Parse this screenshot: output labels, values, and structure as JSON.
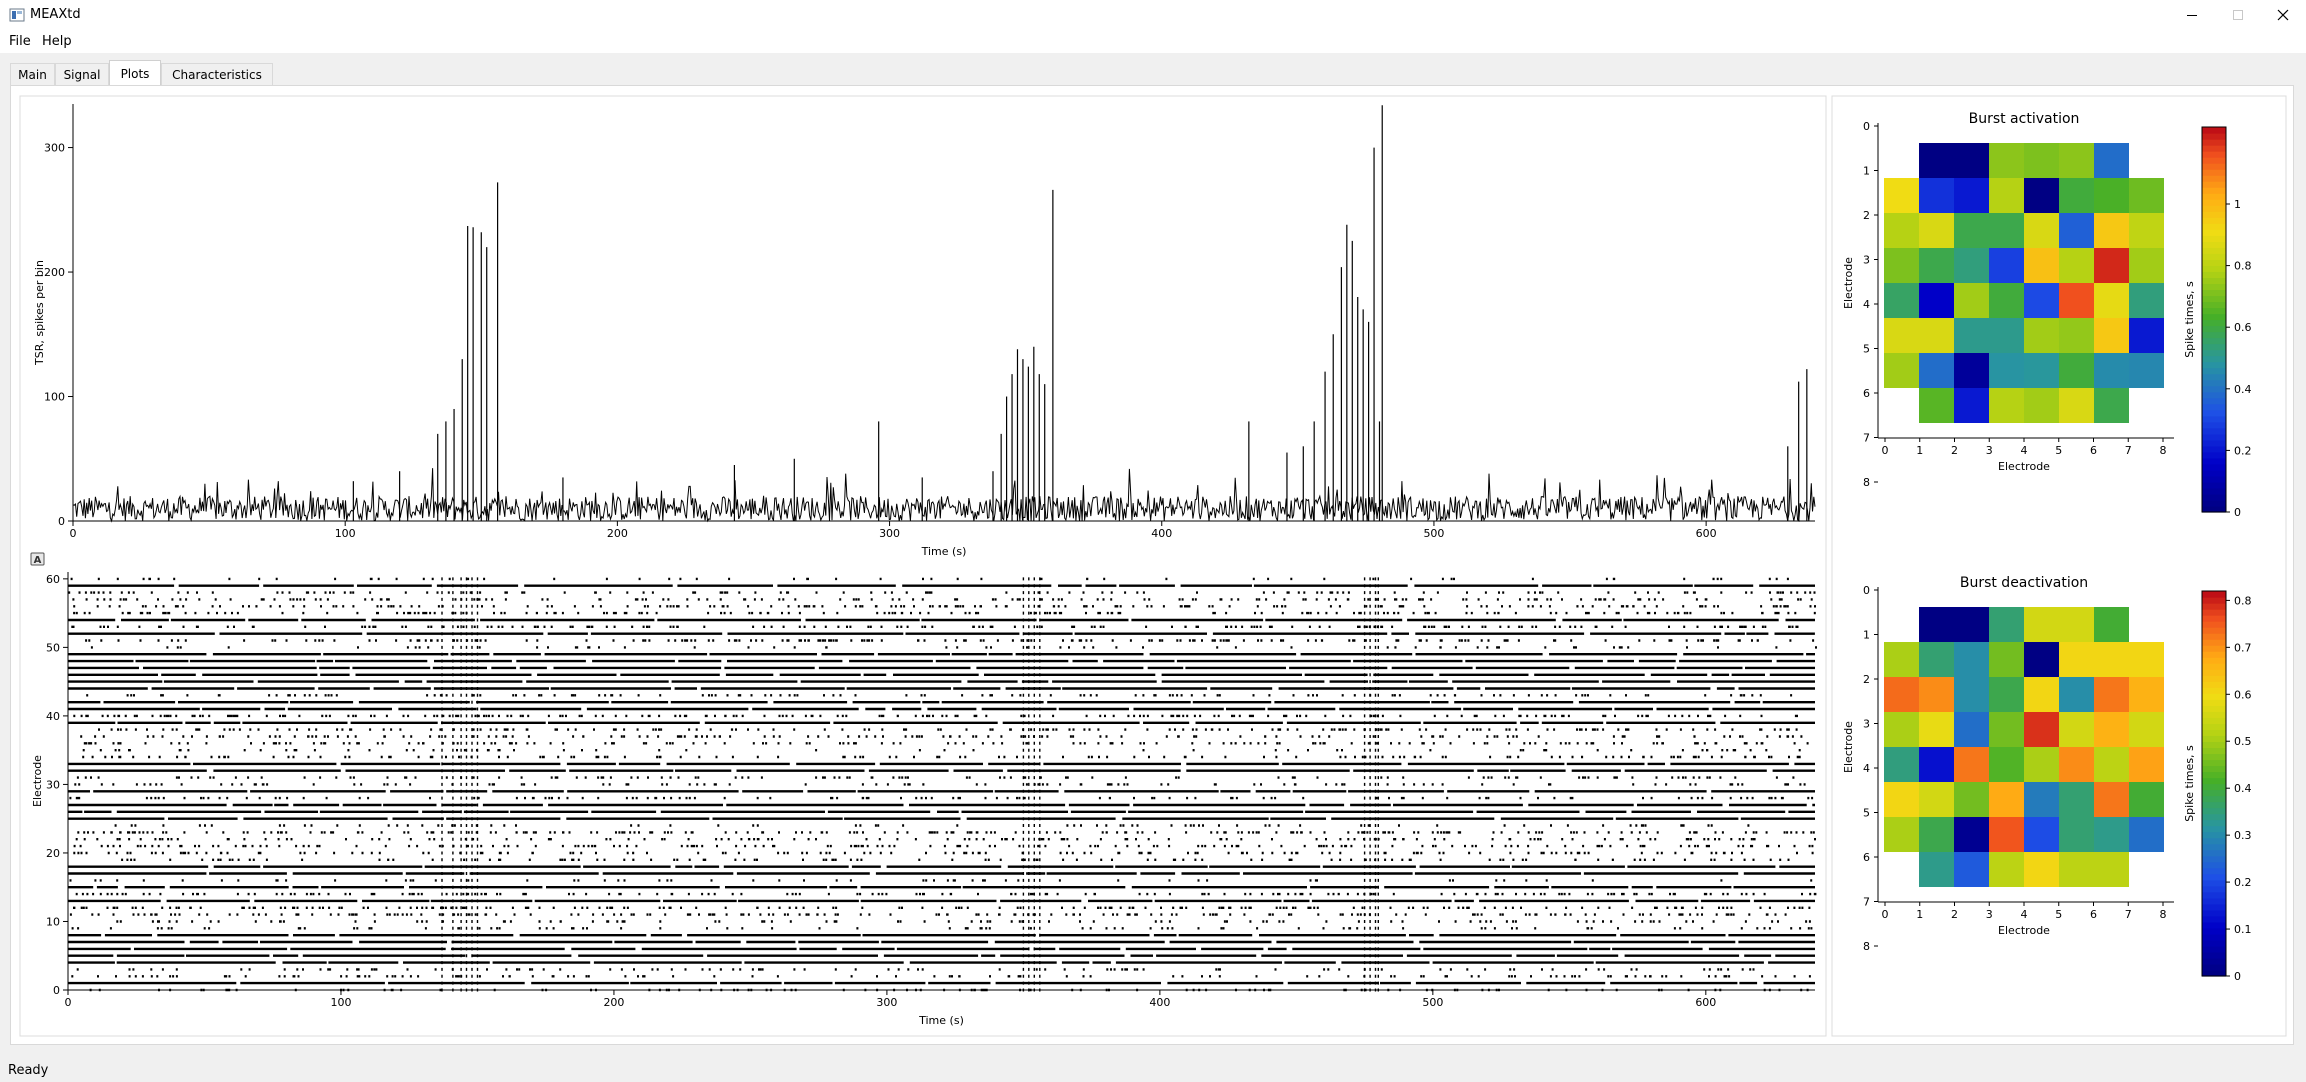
{
  "window": {
    "title": "MEAXtd"
  },
  "menu": {
    "items": [
      "File",
      "Help"
    ]
  },
  "tabs": [
    {
      "label": "Main",
      "active": false
    },
    {
      "label": "Signal",
      "active": false
    },
    {
      "label": "Plots",
      "active": true
    },
    {
      "label": "Characteristics",
      "active": false
    }
  ],
  "status": {
    "text": "Ready"
  },
  "chart_data": [
    {
      "type": "line",
      "xlabel": "Time (s)",
      "ylabel": "TSR, spikes per bin",
      "xlim": [
        0,
        640
      ],
      "ylim": [
        0,
        335
      ],
      "xticks": [
        0,
        100,
        200,
        300,
        400,
        500,
        600
      ],
      "yticks": [
        0,
        100,
        200,
        300
      ],
      "baseline_range": [
        0,
        20
      ],
      "peaks": [
        {
          "x": 103,
          "y": 32
        },
        {
          "x": 120,
          "y": 40
        },
        {
          "x": 134,
          "y": 70
        },
        {
          "x": 137,
          "y": 80
        },
        {
          "x": 140,
          "y": 90
        },
        {
          "x": 143,
          "y": 130
        },
        {
          "x": 145,
          "y": 237
        },
        {
          "x": 147,
          "y": 236
        },
        {
          "x": 150,
          "y": 232
        },
        {
          "x": 152,
          "y": 220
        },
        {
          "x": 156,
          "y": 272
        },
        {
          "x": 180,
          "y": 35
        },
        {
          "x": 243,
          "y": 45
        },
        {
          "x": 265,
          "y": 50
        },
        {
          "x": 296,
          "y": 80
        },
        {
          "x": 312,
          "y": 35
        },
        {
          "x": 338,
          "y": 40
        },
        {
          "x": 341,
          "y": 70
        },
        {
          "x": 343,
          "y": 100
        },
        {
          "x": 345,
          "y": 118
        },
        {
          "x": 347,
          "y": 138
        },
        {
          "x": 349,
          "y": 130
        },
        {
          "x": 351,
          "y": 124
        },
        {
          "x": 353,
          "y": 140
        },
        {
          "x": 355,
          "y": 118
        },
        {
          "x": 357,
          "y": 110
        },
        {
          "x": 360,
          "y": 266
        },
        {
          "x": 432,
          "y": 80
        },
        {
          "x": 446,
          "y": 55
        },
        {
          "x": 452,
          "y": 60
        },
        {
          "x": 456,
          "y": 80
        },
        {
          "x": 460,
          "y": 120
        },
        {
          "x": 463,
          "y": 150
        },
        {
          "x": 466,
          "y": 204
        },
        {
          "x": 468,
          "y": 238
        },
        {
          "x": 470,
          "y": 225
        },
        {
          "x": 472,
          "y": 180
        },
        {
          "x": 474,
          "y": 170
        },
        {
          "x": 476,
          "y": 160
        },
        {
          "x": 478,
          "y": 300
        },
        {
          "x": 480,
          "y": 80
        },
        {
          "x": 481,
          "y": 334
        },
        {
          "x": 630,
          "y": 60
        },
        {
          "x": 634,
          "y": 112
        },
        {
          "x": 637,
          "y": 122
        }
      ]
    },
    {
      "type": "scatter",
      "xlabel": "Time (s)",
      "ylabel": "Electrode",
      "xlim": [
        0,
        640
      ],
      "ylim": [
        0,
        61
      ],
      "xticks": [
        0,
        100,
        200,
        300,
        400,
        500,
        600
      ],
      "yticks": [
        0,
        10,
        20,
        30,
        40,
        50,
        60
      ],
      "burst_columns": [
        [
          137,
          141
        ],
        [
          144,
          146
        ],
        [
          148,
          150
        ],
        [
          350,
          352
        ],
        [
          354,
          356
        ],
        [
          475,
          477
        ],
        [
          479,
          480
        ]
      ]
    },
    {
      "type": "heatmap",
      "title": "Burst activation",
      "xlabel": "Electrode",
      "ylabel": "Electrode",
      "colorbar_label": "Spike times, s",
      "xticks": [
        0,
        1,
        2,
        3,
        4,
        5,
        6,
        7,
        8
      ],
      "yticks": [
        0,
        1,
        2,
        3,
        4,
        5,
        6,
        7,
        8
      ],
      "vmin": 0,
      "vmax": 1.25,
      "cbar_ticks": [
        0,
        0.2,
        0.4,
        0.6,
        0.8,
        1
      ],
      "cells": [
        [
          null,
          0.0,
          0.0,
          0.72,
          0.7,
          0.72,
          0.38,
          null
        ],
        [
          0.9,
          0.25,
          0.2,
          0.78,
          0.0,
          0.6,
          0.63,
          0.68
        ],
        [
          0.78,
          0.85,
          0.58,
          0.58,
          0.85,
          0.35,
          0.95,
          0.8
        ],
        [
          0.7,
          0.58,
          0.52,
          0.28,
          0.97,
          0.78,
          1.2,
          0.75
        ],
        [
          0.55,
          0.15,
          0.75,
          0.6,
          0.3,
          1.15,
          0.88,
          0.52
        ],
        [
          0.85,
          0.85,
          0.5,
          0.5,
          0.75,
          0.73,
          0.95,
          0.2
        ],
        [
          0.75,
          0.38,
          0.05,
          0.47,
          0.48,
          0.6,
          0.45,
          0.44
        ],
        [
          null,
          0.65,
          0.2,
          0.78,
          0.75,
          0.85,
          0.58,
          null
        ]
      ]
    },
    {
      "type": "heatmap",
      "title": "Burst deactivation",
      "xlabel": "Electrode",
      "ylabel": "Electrode",
      "colorbar_label": "Spike times, s",
      "xticks": [
        0,
        1,
        2,
        3,
        4,
        5,
        6,
        7,
        8
      ],
      "yticks": [
        0,
        1,
        2,
        3,
        4,
        5,
        6,
        7,
        8
      ],
      "vmin": 0,
      "vmax": 0.82,
      "cbar_ticks": [
        0,
        0.1,
        0.2,
        0.3,
        0.4,
        0.5,
        0.6,
        0.7,
        0.8
      ],
      "cells": [
        [
          null,
          0.0,
          0.0,
          0.35,
          0.55,
          0.55,
          0.4,
          null
        ],
        [
          0.5,
          0.35,
          0.3,
          0.45,
          0.0,
          0.6,
          0.6,
          0.6
        ],
        [
          0.73,
          0.7,
          0.3,
          0.38,
          0.6,
          0.3,
          0.72,
          0.66
        ],
        [
          0.5,
          0.58,
          0.25,
          0.45,
          0.78,
          0.55,
          0.66,
          0.55
        ],
        [
          0.34,
          0.12,
          0.72,
          0.42,
          0.5,
          0.7,
          0.52,
          0.68
        ],
        [
          0.6,
          0.55,
          0.45,
          0.67,
          0.27,
          0.35,
          0.72,
          0.4
        ],
        [
          0.5,
          0.38,
          0.02,
          0.75,
          0.2,
          0.35,
          0.33,
          0.25
        ],
        [
          null,
          0.33,
          0.22,
          0.52,
          0.6,
          0.52,
          0.52,
          null
        ]
      ]
    }
  ]
}
